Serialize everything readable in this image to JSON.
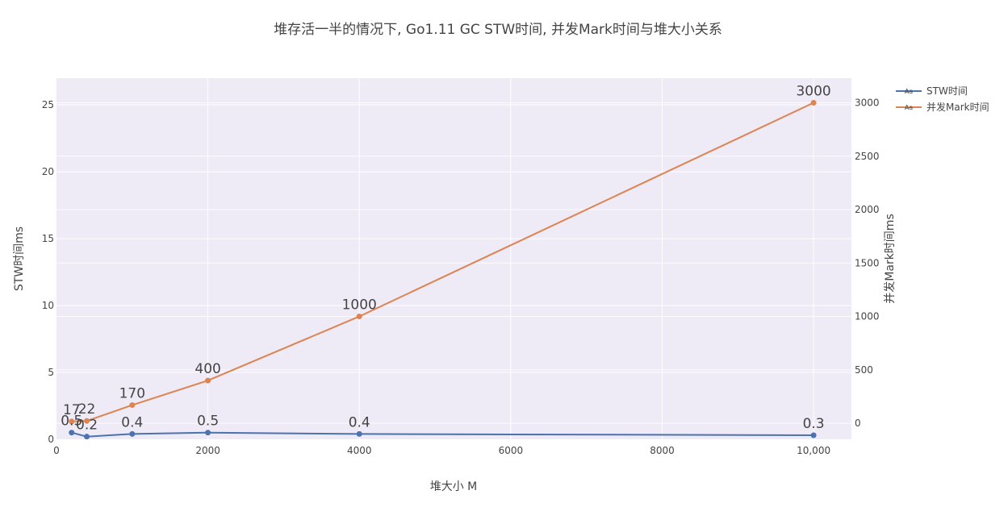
{
  "chart_data": {
    "type": "line",
    "title": "堆存活一半的情况下, Go1.11  GC STW时间, 并发Mark时间与堆大小关系",
    "xlabel": "堆大小 M",
    "ylabel": "STW时间ms",
    "y2label": "并发Mark时间ms",
    "xlim": [
      0,
      10500
    ],
    "ylim": [
      0,
      27
    ],
    "y2lim": [
      -150,
      3230
    ],
    "x_ticks": [
      "0",
      "2000",
      "4000",
      "6000",
      "8000",
      "10,000"
    ],
    "y_ticks": [
      "0",
      "5",
      "10",
      "15",
      "20",
      "25"
    ],
    "y2_ticks": [
      "0",
      "500",
      "1000",
      "1500",
      "2000",
      "2500",
      "3000"
    ],
    "grid": true,
    "legend_position": "top-right",
    "legend_symbol": "Aa",
    "series": [
      {
        "name": "STW时间",
        "axis": "y",
        "color": "#4c72b0",
        "x": [
          200,
          400,
          1000,
          2000,
          4000,
          10000
        ],
        "values": [
          0.5,
          0.2,
          0.4,
          0.5,
          0.4,
          0.3
        ],
        "labels": [
          "0.5",
          "0.2",
          "0.4",
          "0.5",
          "0.4",
          "0.3"
        ]
      },
      {
        "name": "并发Mark时间",
        "axis": "y2",
        "color": "#dd8452",
        "x": [
          200,
          400,
          1000,
          2000,
          4000,
          10000
        ],
        "values": [
          17,
          22,
          170,
          400,
          1000,
          3000
        ],
        "labels": [
          "17",
          "22",
          "170",
          "400",
          "1000",
          "3000"
        ]
      }
    ]
  }
}
